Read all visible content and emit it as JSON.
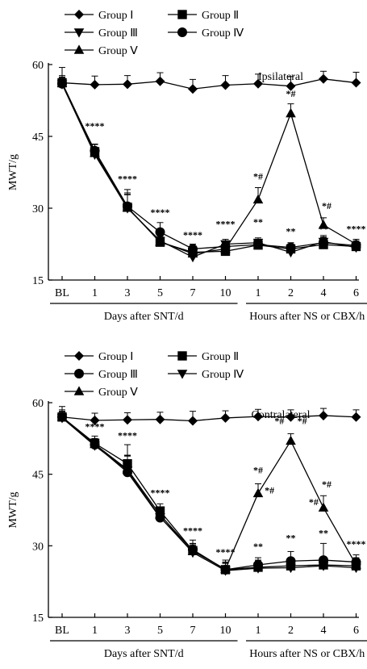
{
  "chart_data": [
    {
      "type": "line",
      "title": "Ipsilateral",
      "ylabel": "MWT/g",
      "ylim": [
        15,
        60
      ],
      "yticks": [
        15,
        30,
        45,
        60
      ],
      "categories": [
        "BL",
        "1",
        "3",
        "5",
        "7",
        "10",
        "1",
        "2",
        "4",
        "6"
      ],
      "xgroups": [
        {
          "label": "Days after SNT/d",
          "from": 0,
          "to": 5
        },
        {
          "label": "Hours after NS or CBX/h",
          "from": 6,
          "to": 9
        }
      ],
      "legend": [
        {
          "label": "Group Ⅰ",
          "marker": "diamond"
        },
        {
          "label": "Group Ⅱ",
          "marker": "square"
        },
        {
          "label": "Group Ⅲ",
          "marker": "triangle-down"
        },
        {
          "label": "Group Ⅳ",
          "marker": "circle"
        },
        {
          "label": "Group Ⅴ",
          "marker": "triangle-up"
        }
      ],
      "series": [
        {
          "marker": "diamond",
          "values": [
            56.2,
            55.8,
            55.9,
            56.5,
            54.9,
            55.7,
            56.0,
            55.5,
            57.0,
            56.2
          ],
          "errors": [
            3.2,
            1.8,
            1.8,
            1.8,
            2.0,
            2.0,
            2.0,
            2.0,
            1.6,
            2.2
          ]
        },
        {
          "marker": "square",
          "values": [
            56.2,
            41.8,
            30.2,
            22.9,
            20.8,
            21.0,
            22.3,
            21.5,
            22.4,
            22.0
          ],
          "errors": [
            1.5,
            1.5,
            3.0,
            1.0,
            1.0,
            1.0,
            1.0,
            1.0,
            1.5,
            1.0
          ]
        },
        {
          "marker": "triangle-down",
          "values": [
            55.9,
            41.2,
            30.0,
            23.2,
            19.8,
            22.5,
            22.8,
            20.8,
            23.0,
            21.8
          ],
          "errors": [
            1.2,
            1.2,
            2.8,
            1.0,
            1.0,
            1.0,
            1.0,
            1.0,
            1.0,
            1.0
          ]
        },
        {
          "marker": "circle",
          "values": [
            56.0,
            42.0,
            30.4,
            25.0,
            21.5,
            22.0,
            22.4,
            21.8,
            22.8,
            22.2
          ],
          "errors": [
            1.4,
            1.4,
            3.5,
            2.0,
            1.0,
            1.0,
            1.0,
            1.0,
            1.5,
            1.0
          ]
        },
        {
          "marker": "triangle-up",
          "values": [
            56.1,
            41.5,
            30.1,
            23.0,
            20.5,
            21.5,
            31.8,
            49.8,
            26.5,
            22.5
          ],
          "errors": [
            1.2,
            1.2,
            2.8,
            1.0,
            1.0,
            1.0,
            2.5,
            2.0,
            1.5,
            1.0
          ]
        }
      ],
      "annotations": [
        {
          "x": 1,
          "y": 46.5,
          "text": "****"
        },
        {
          "x": 2,
          "y": 35.5,
          "text": "****"
        },
        {
          "x": 3,
          "y": 28.5,
          "text": "****"
        },
        {
          "x": 4,
          "y": 23.8,
          "text": "****"
        },
        {
          "x": 5,
          "y": 26.0,
          "text": "****"
        },
        {
          "x": 6,
          "y": 26.5,
          "text": "**"
        },
        {
          "x": 7,
          "y": 24.5,
          "text": "**"
        },
        {
          "x": 8,
          "y": 25.0,
          "text": "**"
        },
        {
          "x": 9,
          "y": 25.0,
          "text": "****"
        },
        {
          "x": 6,
          "y": 36.0,
          "text": "*#"
        },
        {
          "x": 7,
          "y": 53.3,
          "text": "*#"
        },
        {
          "x": 8.1,
          "y": 29.8,
          "text": "*#"
        }
      ]
    },
    {
      "type": "line",
      "title": "Contralateral",
      "ylabel": "MWT/g",
      "ylim": [
        15,
        60
      ],
      "yticks": [
        15,
        30,
        45,
        60
      ],
      "categories": [
        "BL",
        "1",
        "3",
        "5",
        "7",
        "10",
        "1",
        "2",
        "4",
        "6"
      ],
      "xgroups": [
        {
          "label": "Days after SNT/d",
          "from": 0,
          "to": 5
        },
        {
          "label": "Hours after NS or CBX/h",
          "from": 6,
          "to": 9
        }
      ],
      "legend": [
        {
          "label": "Group Ⅰ",
          "marker": "diamond"
        },
        {
          "label": "Group Ⅱ",
          "marker": "square"
        },
        {
          "label": "Group Ⅲ",
          "marker": "circle"
        },
        {
          "label": "Group Ⅳ",
          "marker": "triangle-down"
        },
        {
          "label": "Group Ⅴ",
          "marker": "triangle-up"
        }
      ],
      "series": [
        {
          "marker": "diamond",
          "values": [
            57.0,
            56.3,
            56.4,
            56.5,
            56.2,
            56.8,
            57.1,
            57.0,
            57.3,
            57.0
          ],
          "errors": [
            2.2,
            1.5,
            1.5,
            1.5,
            2.0,
            1.5,
            1.5,
            1.5,
            1.5,
            1.5
          ]
        },
        {
          "marker": "square",
          "values": [
            57.0,
            51.5,
            47.2,
            37.3,
            29.0,
            25.0,
            25.5,
            25.8,
            26.0,
            25.8
          ],
          "errors": [
            1.5,
            1.5,
            4.0,
            1.5,
            1.5,
            2.0,
            1.5,
            1.5,
            1.5,
            1.5
          ]
        },
        {
          "marker": "circle",
          "values": [
            57.0,
            51.2,
            45.4,
            35.9,
            29.2,
            25.0,
            26.0,
            26.8,
            27.0,
            26.6
          ],
          "errors": [
            1.2,
            1.2,
            3.5,
            1.5,
            2.0,
            1.5,
            1.5,
            2.0,
            3.5,
            1.5
          ]
        },
        {
          "marker": "triangle-down",
          "values": [
            56.8,
            51.0,
            45.8,
            36.0,
            28.6,
            24.8,
            25.3,
            25.4,
            25.8,
            25.4
          ],
          "errors": [
            1.2,
            1.2,
            3.0,
            1.5,
            1.5,
            1.5,
            1.5,
            1.5,
            1.5,
            1.5
          ]
        },
        {
          "marker": "triangle-up",
          "values": [
            57.0,
            51.3,
            46.0,
            36.5,
            28.9,
            25.1,
            41.0,
            52.0,
            38.0,
            26.0
          ],
          "errors": [
            1.2,
            1.2,
            3.0,
            1.5,
            1.5,
            1.5,
            2.0,
            1.5,
            2.5,
            1.5
          ]
        }
      ],
      "annotations": [
        {
          "x": 1,
          "y": 54.3,
          "text": "****"
        },
        {
          "x": 2,
          "y": 52.5,
          "text": "****"
        },
        {
          "x": 3,
          "y": 40.5,
          "text": "****"
        },
        {
          "x": 4,
          "y": 32.5,
          "text": "****"
        },
        {
          "x": 5,
          "y": 28.0,
          "text": "****"
        },
        {
          "x": 6,
          "y": 29.2,
          "text": "**"
        },
        {
          "x": 7,
          "y": 31.0,
          "text": "**"
        },
        {
          "x": 8,
          "y": 32.0,
          "text": "**"
        },
        {
          "x": 9,
          "y": 29.7,
          "text": "****"
        },
        {
          "x": 6,
          "y": 45.2,
          "text": "*#"
        },
        {
          "x": 6.35,
          "y": 41.0,
          "text": "*#"
        },
        {
          "x": 6.65,
          "y": 55.5,
          "text": "*#"
        },
        {
          "x": 7.35,
          "y": 55.5,
          "text": "*#"
        },
        {
          "x": 8.1,
          "y": 42.2,
          "text": "*#"
        },
        {
          "x": 7.7,
          "y": 38.5,
          "text": "*#"
        }
      ]
    }
  ]
}
